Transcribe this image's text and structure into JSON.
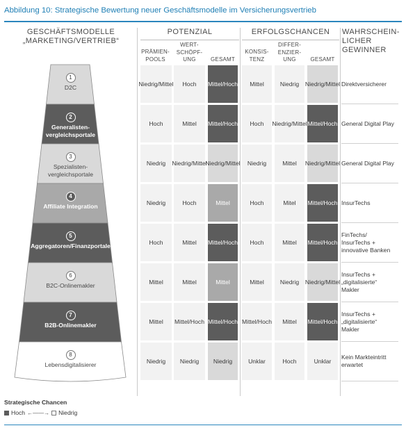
{
  "title": "Abbildung 10: Strategische Bewertung neuer Geschäftsmodelle im Versicherungsvertrieb",
  "headers": {
    "segment": [
      "GESCHÄFTSMODELLE",
      "„MARKETING/VERTRIEB“"
    ],
    "potenzial": "POTENZIAL",
    "erfolg": "ERFOLGSCHANCEN",
    "winner": [
      "WAHRSCHEIN-",
      "LICHER",
      "GEWINNER"
    ]
  },
  "subheaders": {
    "praemien": [
      "PRÄMIEN-",
      "POOLS"
    ],
    "wert": [
      "WERT-",
      "SCHÖPF-",
      "UNG"
    ],
    "gesamt1": "GESAMT",
    "konsistenz": [
      "KONSIS-",
      "TENZ"
    ],
    "differ": [
      "DIFFER-",
      "ENZIER-",
      "UNG"
    ],
    "gesamt2": "GESAMT"
  },
  "colors": {
    "white": "#f2f2f2",
    "light": "#d9d9d9",
    "medium": "#a9a9a9",
    "dark": "#5c5c5c",
    "accent": "#1f7fb5"
  },
  "rows": [
    {
      "num": "1",
      "label": [
        "D2C"
      ],
      "funnel": "light",
      "cells": [
        [
          "Niedrig/",
          "Mittel"
        ],
        [
          "Hoch"
        ],
        [
          "Mittel/",
          "Hoch"
        ],
        [
          "Mittel"
        ],
        [
          "Niedrig"
        ],
        [
          "Niedrig/",
          "Mittel"
        ]
      ],
      "styles": [
        "w",
        "w",
        "dk",
        "w",
        "w",
        "lg"
      ],
      "winner": [
        "Direktversicherer"
      ]
    },
    {
      "num": "2",
      "label": [
        "Generalisten-",
        "vergleichsportale"
      ],
      "funnel": "dark",
      "cells": [
        [
          "Hoch"
        ],
        [
          "Mittel"
        ],
        [
          "Mittel/",
          "Hoch"
        ],
        [
          "Hoch"
        ],
        [
          "Niedrig/",
          "Mittel"
        ],
        [
          "Mittel/",
          "Hoch"
        ]
      ],
      "styles": [
        "w",
        "w",
        "dk",
        "w",
        "w",
        "dk"
      ],
      "winner": [
        "General Digital Play"
      ]
    },
    {
      "num": "3",
      "label": [
        "Spezialisten-",
        "vergleichsportale"
      ],
      "funnel": "light",
      "cells": [
        [
          "Niedrig"
        ],
        [
          "Niedrig/",
          "Mittel"
        ],
        [
          "Niedrig/",
          "Mittel"
        ],
        [
          "Niedrig"
        ],
        [
          "Mittel"
        ],
        [
          "Niedrig/",
          "Mittel"
        ]
      ],
      "styles": [
        "w",
        "w",
        "lg",
        "w",
        "w",
        "lg"
      ],
      "winner": [
        "General Digital Play"
      ]
    },
    {
      "num": "4",
      "label": [
        "Affiliate Integration"
      ],
      "funnel": "medium",
      "cells": [
        [
          "Niedrig"
        ],
        [
          "Hoch"
        ],
        [
          "Mittel"
        ],
        [
          "Hoch"
        ],
        [
          "Mitel"
        ],
        [
          "Mittel/",
          "Hoch"
        ]
      ],
      "styles": [
        "w",
        "w",
        "md",
        "w",
        "w",
        "dk"
      ],
      "winner": [
        "InsurTechs"
      ]
    },
    {
      "num": "5",
      "label": [
        "Aggregatoren/Finanzportale"
      ],
      "funnel": "dark",
      "cells": [
        [
          "Hoch"
        ],
        [
          "Mittel"
        ],
        [
          "Mittel/",
          "Hoch"
        ],
        [
          "Hoch"
        ],
        [
          "Mittel"
        ],
        [
          "Mittel/",
          "Hoch"
        ]
      ],
      "styles": [
        "w",
        "w",
        "dk",
        "w",
        "w",
        "dk"
      ],
      "winner": [
        "FinTechs/",
        "InsurTechs +",
        "innovative Banken"
      ]
    },
    {
      "num": "6",
      "label": [
        "B2C-Onlinemakler"
      ],
      "funnel": "light",
      "cells": [
        [
          "Mittel"
        ],
        [
          "Mittel"
        ],
        [
          "Mittel"
        ],
        [
          "Mittel"
        ],
        [
          "Niedrig"
        ],
        [
          "Niedrig/",
          "Mittel"
        ]
      ],
      "styles": [
        "w",
        "w",
        "md",
        "w",
        "w",
        "lg"
      ],
      "winner": [
        "InsurTechs +",
        "„digitalisierte“",
        "Makler"
      ]
    },
    {
      "num": "7",
      "label": [
        "B2B-Onlinemakler"
      ],
      "funnel": "dark",
      "cells": [
        [
          "Mittel"
        ],
        [
          "Mittel/",
          "Hoch"
        ],
        [
          "Mittel/",
          "Hoch"
        ],
        [
          "Mittel/",
          "Hoch"
        ],
        [
          "Mittel"
        ],
        [
          "Mittel/",
          "Hoch"
        ]
      ],
      "styles": [
        "w",
        "w",
        "dk",
        "w",
        "w",
        "dk"
      ],
      "winner": [
        "InsurTechs +",
        "„digitalisierte“",
        "Makler"
      ]
    },
    {
      "num": "8",
      "label": [
        "Lebensdigitalisierer"
      ],
      "funnel": "white",
      "cells": [
        [
          "Niedrig"
        ],
        [
          "Niedrig"
        ],
        [
          "Niedrig"
        ],
        [
          "Unklar"
        ],
        [
          "Hoch"
        ],
        [
          "Unklar"
        ]
      ],
      "styles": [
        "w",
        "w",
        "lg",
        "w",
        "w",
        "w"
      ],
      "winner": [
        "Kein Markteintritt",
        "erwartet"
      ]
    }
  ],
  "legend": {
    "title": "Strategische Chancen",
    "high": "Hoch",
    "low": "Niedrig",
    "arrow": "←——→"
  }
}
